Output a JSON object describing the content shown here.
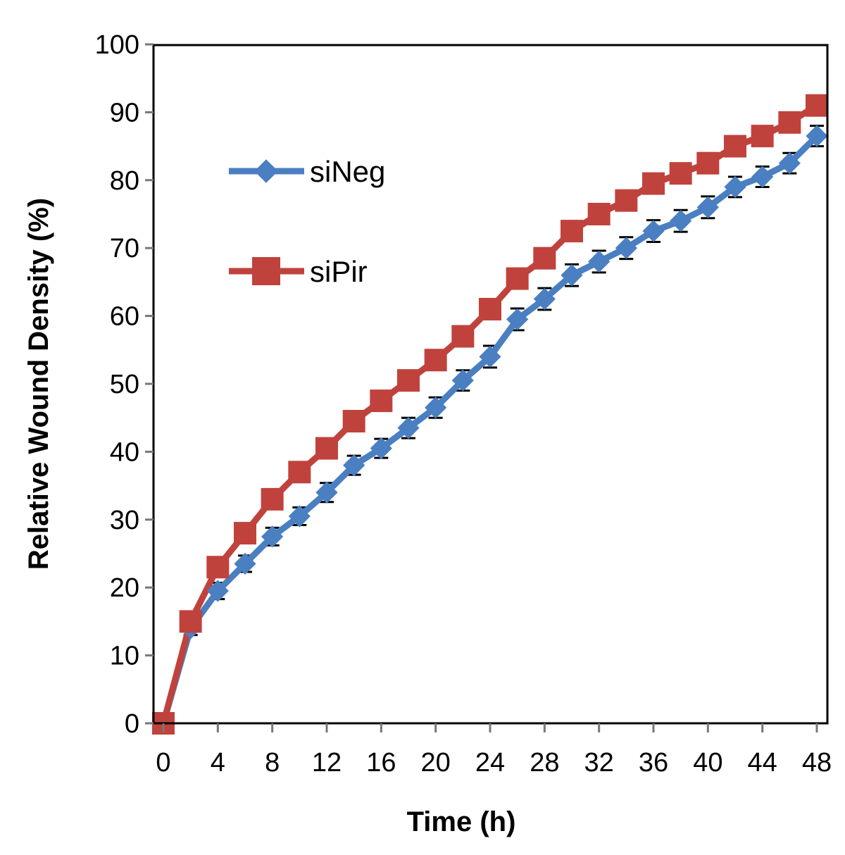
{
  "chart_data": {
    "type": "line",
    "title": "",
    "xlabel": "Time (h)",
    "ylabel": "Relative Wound Density (%)",
    "xlim": [
      -1,
      49
    ],
    "ylim": [
      0,
      100
    ],
    "xticks": [
      0,
      4,
      8,
      12,
      16,
      20,
      24,
      28,
      32,
      36,
      40,
      44,
      48
    ],
    "yticks": [
      0,
      10,
      20,
      30,
      40,
      50,
      60,
      70,
      80,
      90,
      100
    ],
    "grid": false,
    "legend_position": "upper-left inside",
    "x": [
      0,
      2,
      4,
      6,
      8,
      10,
      12,
      14,
      16,
      18,
      20,
      22,
      24,
      26,
      28,
      30,
      32,
      34,
      36,
      38,
      40,
      42,
      44,
      46,
      48
    ],
    "series": [
      {
        "name": "siNeg",
        "color": "#4a7fc1",
        "marker": "diamond",
        "values": [
          0,
          14,
          19.5,
          23.5,
          27.5,
          30.5,
          34,
          38,
          40.5,
          43.5,
          46.5,
          50.5,
          54,
          59.5,
          62.5,
          66,
          68,
          70,
          72.5,
          74,
          76,
          79,
          80.5,
          82.5,
          86.5
        ],
        "error": [
          0,
          1,
          1.2,
          1.2,
          1.3,
          1.3,
          1.4,
          1.4,
          1.4,
          1.5,
          1.5,
          1.5,
          1.6,
          1.6,
          1.6,
          1.6,
          1.6,
          1.6,
          1.6,
          1.6,
          1.6,
          1.5,
          1.5,
          1.5,
          1.5
        ]
      },
      {
        "name": "siPir",
        "color": "#c0423d",
        "marker": "square",
        "values": [
          0,
          15,
          23,
          28,
          33,
          37,
          40.5,
          44.5,
          47.5,
          50.5,
          53.5,
          57,
          61,
          65.5,
          68.5,
          72.5,
          75,
          77,
          79.5,
          81,
          82.5,
          85,
          86.5,
          88.5,
          91
        ],
        "error": [
          0,
          0.8,
          1,
          1,
          1.2,
          1.2,
          1.3,
          1.3,
          1.3,
          1.4,
          1.4,
          1.4,
          1.4,
          1.4,
          1.4,
          1.4,
          1.4,
          1.4,
          1.4,
          1.4,
          1.4,
          1.4,
          1.4,
          1.4,
          1.4
        ]
      }
    ]
  }
}
